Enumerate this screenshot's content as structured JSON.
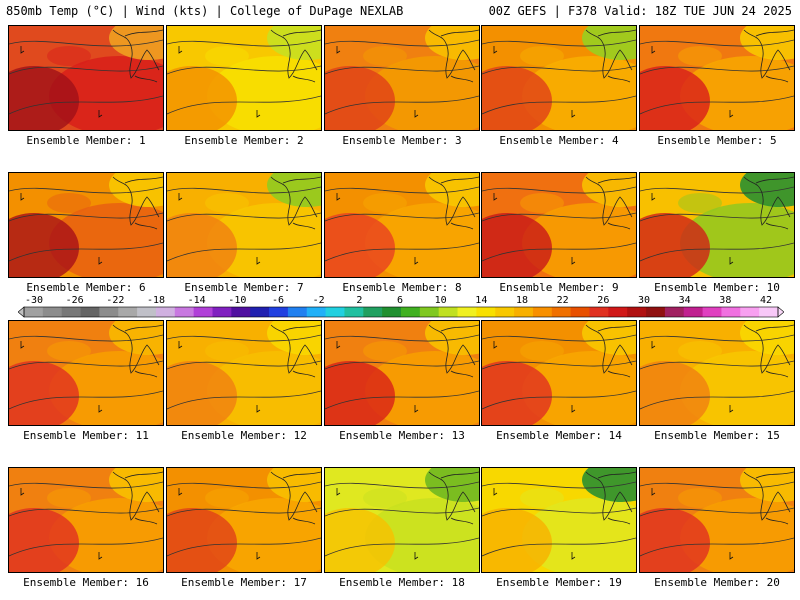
{
  "header": {
    "left": "850mb Temp (°C) | Wind (kts) | College of DuPage NEXLAB",
    "right": "00Z GEFS | F378 Valid: 18Z TUE JUN 24 2025"
  },
  "colorbar": {
    "labels": [
      "-30",
      "-26",
      "-22",
      "-18",
      "-14",
      "-10",
      "-6",
      "-2",
      "2",
      "6",
      "10",
      "14",
      "18",
      "22",
      "26",
      "30",
      "34",
      "38",
      "42"
    ],
    "colors": [
      "#a0a0a0",
      "#8c8c8c",
      "#787878",
      "#646464",
      "#8c8c8c",
      "#a8a8a8",
      "#c0c0c8",
      "#d0b0e0",
      "#c878e0",
      "#b040d8",
      "#8020c0",
      "#5010a0",
      "#2020b0",
      "#2040e0",
      "#2080f0",
      "#20b0f8",
      "#20d0e0",
      "#20c0a0",
      "#20a060",
      "#209030",
      "#40b020",
      "#80c820",
      "#c0e020",
      "#f0f020",
      "#f8e000",
      "#f8c800",
      "#f8b000",
      "#f89000",
      "#f07000",
      "#e85000",
      "#e03020",
      "#d01818",
      "#b01010",
      "#901010",
      "#a02060",
      "#c02090",
      "#e040c0",
      "#f070e0",
      "#f8a0f0",
      "#f8c8f8"
    ]
  },
  "members": [
    {
      "label": "Ensemble Member: 1",
      "base": "#e04a1e",
      "mid": "#d81e1a",
      "hot": "#a01018",
      "cool": "#f0a020"
    },
    {
      "label": "Ensemble Member: 2",
      "base": "#f8c800",
      "mid": "#f8e000",
      "hot": "#f39000",
      "cool": "#c8e020"
    },
    {
      "label": "Ensemble Member: 3",
      "base": "#f08010",
      "mid": "#f39c00",
      "hot": "#e04018",
      "cool": "#f8c000"
    },
    {
      "label": "Ensemble Member: 4",
      "base": "#f39000",
      "mid": "#f8b000",
      "hot": "#e04018",
      "cool": "#98d020"
    },
    {
      "label": "Ensemble Member: 5",
      "base": "#f07810",
      "mid": "#f8a800",
      "hot": "#d81e1a",
      "cool": "#f8c800"
    },
    {
      "label": "Ensemble Member: 6",
      "base": "#f39000",
      "mid": "#e86010",
      "hot": "#a81018",
      "cool": "#f8c800"
    },
    {
      "label": "Ensemble Member: 7",
      "base": "#f8b000",
      "mid": "#f8c800",
      "hot": "#f08010",
      "cool": "#90cc20"
    },
    {
      "label": "Ensemble Member: 8",
      "base": "#f39000",
      "mid": "#f8a800",
      "hot": "#e84020",
      "cool": "#f8c800"
    },
    {
      "label": "Ensemble Member: 9",
      "base": "#f07010",
      "mid": "#f8a000",
      "hot": "#c81818",
      "cool": "#f8c000"
    },
    {
      "label": "Ensemble Member: 10",
      "base": "#f8c000",
      "mid": "#90c820",
      "hot": "#d02018",
      "cool": "#2a9030"
    },
    {
      "label": "Ensemble Member: 11",
      "base": "#f08010",
      "mid": "#f8a000",
      "hot": "#e03020",
      "cool": "#f8b800"
    },
    {
      "label": "Ensemble Member: 12",
      "base": "#f8b000",
      "mid": "#f8c000",
      "hot": "#f08010",
      "cool": "#f8d800"
    },
    {
      "label": "Ensemble Member: 13",
      "base": "#f08010",
      "mid": "#f8a000",
      "hot": "#d82018",
      "cool": "#f8c000"
    },
    {
      "label": "Ensemble Member: 14",
      "base": "#f39000",
      "mid": "#f8a800",
      "hot": "#e03020",
      "cool": "#f8c800"
    },
    {
      "label": "Ensemble Member: 15",
      "base": "#f8b000",
      "mid": "#f8c800",
      "hot": "#f08010",
      "cool": "#f8d800"
    },
    {
      "label": "Ensemble Member: 16",
      "base": "#f08010",
      "mid": "#f8a000",
      "hot": "#e03020",
      "cool": "#f8c000"
    },
    {
      "label": "Ensemble Member: 17",
      "base": "#f39000",
      "mid": "#f8a800",
      "hot": "#e04018",
      "cool": "#f8c000"
    },
    {
      "label": "Ensemble Member: 18",
      "base": "#e0e820",
      "mid": "#c8e020",
      "hot": "#f8c000",
      "cool": "#70b820"
    },
    {
      "label": "Ensemble Member: 19",
      "base": "#f8d800",
      "mid": "#e0e820",
      "hot": "#f8b000",
      "cool": "#2a9030"
    },
    {
      "label": "Ensemble Member: 20",
      "base": "#f08010",
      "mid": "#f8a000",
      "hot": "#e03020",
      "cool": "#f8c000"
    }
  ]
}
